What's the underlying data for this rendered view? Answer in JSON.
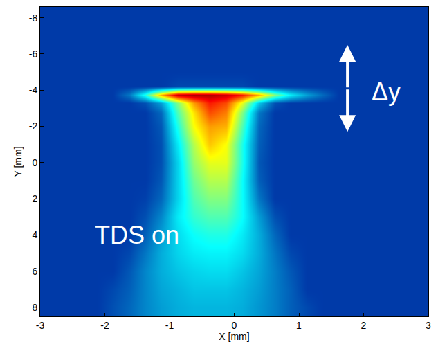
{
  "chart_data": {
    "type": "heatmap",
    "xlabel": "X [mm]",
    "ylabel": "Y [mm]",
    "annotations": [
      "TDS on",
      "Δy"
    ],
    "xlim": [
      -3,
      3
    ],
    "ylim": [
      8.5,
      -8.6
    ],
    "xticks": [
      -3,
      -2,
      -1,
      0,
      1,
      2,
      3
    ],
    "yticks": [
      -8,
      -6,
      -4,
      -2,
      0,
      2,
      4,
      6,
      8
    ],
    "grid": true,
    "zlim": [
      0,
      1
    ],
    "x": [
      -2.875,
      -2.625,
      -2.375,
      -2.125,
      -1.875,
      -1.625,
      -1.375,
      -1.125,
      -0.875,
      -0.625,
      -0.375,
      -0.125,
      0.125,
      0.375,
      0.625,
      0.875,
      1.125,
      1.375,
      1.625,
      1.875,
      2.125,
      2.375,
      2.625,
      2.875
    ],
    "y": [
      -8,
      -6.5,
      -5,
      -4.2,
      -3.75,
      -3.3,
      -2.75,
      -2,
      -1,
      0,
      1,
      2,
      3,
      4,
      5,
      6,
      7,
      8
    ],
    "cells": [
      [
        0.12,
        0.12,
        0.12,
        0.12,
        0.12,
        0.12,
        0.12,
        0.12,
        0.12,
        0.12,
        0.12,
        0.12,
        0.12,
        0.12,
        0.12,
        0.12,
        0.12,
        0.12,
        0.12,
        0.12,
        0.12,
        0.12,
        0.12,
        0.12
      ],
      [
        0.12,
        0.12,
        0.12,
        0.12,
        0.12,
        0.12,
        0.12,
        0.12,
        0.12,
        0.12,
        0.12,
        0.12,
        0.12,
        0.12,
        0.12,
        0.12,
        0.12,
        0.12,
        0.12,
        0.12,
        0.12,
        0.12,
        0.12,
        0.12
      ],
      [
        0.12,
        0.12,
        0.12,
        0.12,
        0.12,
        0.12,
        0.12,
        0.12,
        0.12,
        0.12,
        0.12,
        0.12,
        0.12,
        0.12,
        0.12,
        0.12,
        0.12,
        0.12,
        0.12,
        0.12,
        0.12,
        0.12,
        0.12,
        0.12
      ],
      [
        0.12,
        0.12,
        0.12,
        0.12,
        0.12,
        0.12,
        0.12,
        0.12,
        0.14,
        0.14,
        0.14,
        0.14,
        0.14,
        0.12,
        0.12,
        0.12,
        0.12,
        0.12,
        0.12,
        0.12,
        0.12,
        0.12,
        0.12,
        0.12
      ],
      [
        0.12,
        0.12,
        0.12,
        0.12,
        0.12,
        0.2,
        0.4,
        0.7,
        0.92,
        0.95,
        0.95,
        0.92,
        0.85,
        0.7,
        0.5,
        0.35,
        0.25,
        0.18,
        0.12,
        0.12,
        0.12,
        0.12,
        0.12,
        0.12
      ],
      [
        0.12,
        0.12,
        0.12,
        0.12,
        0.12,
        0.12,
        0.15,
        0.25,
        0.5,
        0.72,
        0.85,
        0.8,
        0.6,
        0.3,
        0.15,
        0.12,
        0.12,
        0.12,
        0.12,
        0.12,
        0.12,
        0.12,
        0.12,
        0.12
      ],
      [
        0.12,
        0.12,
        0.12,
        0.12,
        0.12,
        0.12,
        0.12,
        0.18,
        0.45,
        0.65,
        0.8,
        0.75,
        0.5,
        0.2,
        0.12,
        0.12,
        0.12,
        0.12,
        0.12,
        0.12,
        0.12,
        0.12,
        0.12,
        0.12
      ],
      [
        0.12,
        0.12,
        0.12,
        0.12,
        0.12,
        0.12,
        0.12,
        0.16,
        0.4,
        0.62,
        0.72,
        0.7,
        0.45,
        0.18,
        0.12,
        0.12,
        0.12,
        0.12,
        0.12,
        0.12,
        0.12,
        0.12,
        0.12,
        0.12
      ],
      [
        0.12,
        0.12,
        0.12,
        0.12,
        0.12,
        0.12,
        0.12,
        0.15,
        0.35,
        0.55,
        0.68,
        0.62,
        0.4,
        0.17,
        0.12,
        0.12,
        0.12,
        0.12,
        0.12,
        0.12,
        0.12,
        0.12,
        0.12,
        0.12
      ],
      [
        0.12,
        0.12,
        0.12,
        0.12,
        0.12,
        0.12,
        0.12,
        0.15,
        0.32,
        0.52,
        0.6,
        0.6,
        0.4,
        0.16,
        0.12,
        0.12,
        0.12,
        0.12,
        0.12,
        0.12,
        0.12,
        0.12,
        0.12,
        0.12
      ],
      [
        0.12,
        0.12,
        0.12,
        0.12,
        0.12,
        0.12,
        0.12,
        0.16,
        0.32,
        0.48,
        0.55,
        0.55,
        0.38,
        0.17,
        0.12,
        0.12,
        0.12,
        0.12,
        0.12,
        0.12,
        0.12,
        0.12,
        0.12,
        0.12
      ],
      [
        0.12,
        0.12,
        0.12,
        0.12,
        0.12,
        0.12,
        0.13,
        0.18,
        0.32,
        0.45,
        0.5,
        0.5,
        0.38,
        0.2,
        0.12,
        0.12,
        0.12,
        0.12,
        0.12,
        0.12,
        0.12,
        0.12,
        0.12,
        0.12
      ],
      [
        0.12,
        0.12,
        0.12,
        0.12,
        0.12,
        0.12,
        0.15,
        0.22,
        0.35,
        0.42,
        0.45,
        0.45,
        0.38,
        0.25,
        0.15,
        0.12,
        0.12,
        0.12,
        0.12,
        0.12,
        0.12,
        0.12,
        0.12,
        0.12
      ],
      [
        0.12,
        0.12,
        0.12,
        0.12,
        0.12,
        0.12,
        0.17,
        0.25,
        0.33,
        0.38,
        0.4,
        0.4,
        0.35,
        0.27,
        0.18,
        0.12,
        0.12,
        0.12,
        0.12,
        0.12,
        0.12,
        0.12,
        0.12,
        0.12
      ],
      [
        0.12,
        0.12,
        0.12,
        0.12,
        0.12,
        0.14,
        0.2,
        0.27,
        0.32,
        0.35,
        0.36,
        0.36,
        0.33,
        0.27,
        0.2,
        0.14,
        0.12,
        0.12,
        0.12,
        0.12,
        0.12,
        0.12,
        0.12,
        0.12
      ],
      [
        0.12,
        0.12,
        0.12,
        0.12,
        0.12,
        0.16,
        0.22,
        0.27,
        0.3,
        0.32,
        0.33,
        0.33,
        0.3,
        0.26,
        0.21,
        0.16,
        0.12,
        0.12,
        0.12,
        0.12,
        0.12,
        0.12,
        0.12,
        0.12
      ],
      [
        0.12,
        0.12,
        0.12,
        0.12,
        0.14,
        0.17,
        0.22,
        0.26,
        0.28,
        0.3,
        0.3,
        0.3,
        0.28,
        0.25,
        0.21,
        0.17,
        0.12,
        0.12,
        0.12,
        0.12,
        0.12,
        0.12,
        0.12,
        0.12
      ],
      [
        0.12,
        0.12,
        0.12,
        0.12,
        0.15,
        0.18,
        0.22,
        0.25,
        0.27,
        0.28,
        0.28,
        0.28,
        0.27,
        0.24,
        0.21,
        0.17,
        0.14,
        0.12,
        0.12,
        0.12,
        0.12,
        0.12,
        0.12,
        0.12
      ]
    ]
  }
}
